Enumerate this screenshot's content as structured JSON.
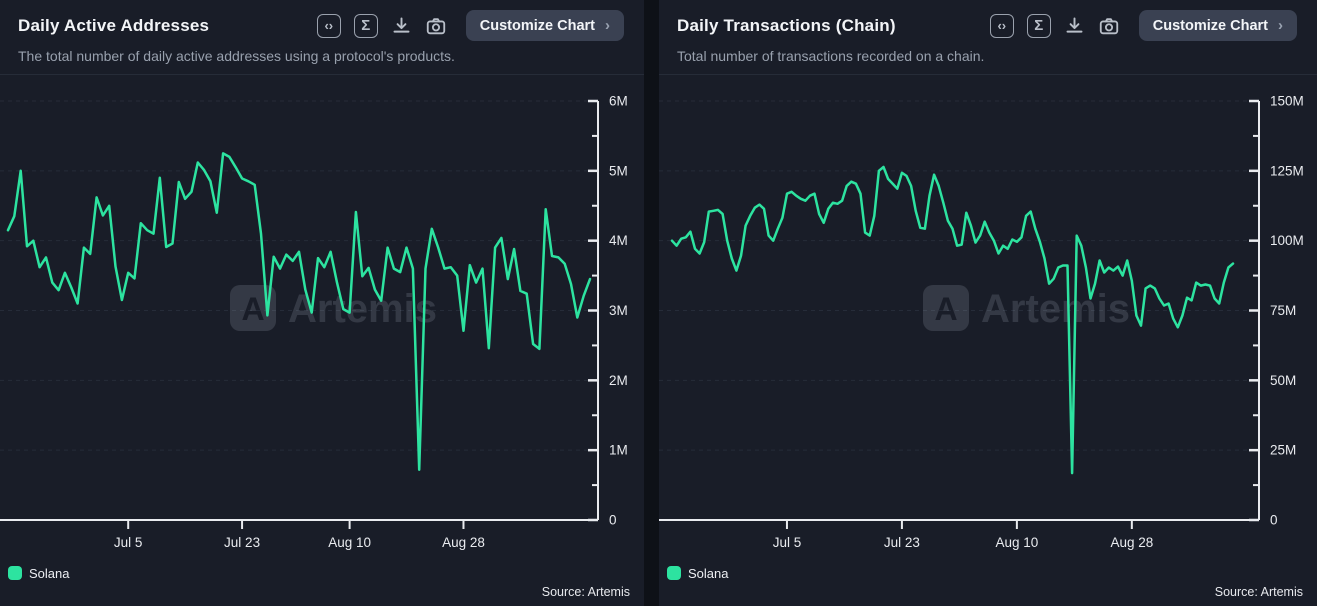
{
  "brand": {
    "watermark_logo_letter": "A",
    "watermark_text": "Artemis",
    "accent": "#2de3a0"
  },
  "panels": [
    {
      "title": "Daily Active Addresses",
      "subtitle": "The total number of daily active addresses using a protocol's products.",
      "customize_label": "Customize Chart",
      "customize_chevron": "›",
      "icons": [
        "embed-code",
        "sigma-summary",
        "download",
        "camera-snapshot"
      ],
      "legend": [
        {
          "label": "Solana",
          "color": "#2de3a0"
        }
      ],
      "source": "Source: Artemis"
    },
    {
      "title": "Daily Transactions (Chain)",
      "subtitle": "Total number of transactions recorded on a chain.",
      "customize_label": "Customize Chart",
      "customize_chevron": "›",
      "icons": [
        "embed-code",
        "sigma-summary",
        "download",
        "camera-snapshot"
      ],
      "legend": [
        {
          "label": "Solana",
          "color": "#2de3a0"
        }
      ],
      "source": "Source: Artemis"
    }
  ],
  "chart_data": [
    {
      "type": "line",
      "title": "Daily Active Addresses",
      "ylabel": "",
      "xlabel": "",
      "unit": "millions of addresses",
      "grid": "horizontal-dashed",
      "legend_position": "bottom-left",
      "y_axis_side": "right",
      "ylim": [
        0,
        6
      ],
      "y_tick_values": [
        0,
        1,
        2,
        3,
        4,
        5,
        6
      ],
      "y_tick_labels": [
        "0",
        "1M",
        "2M",
        "3M",
        "4M",
        "5M",
        "6M"
      ],
      "x_tick_labels": [
        "Jul 5",
        "Jul 23",
        "Aug 10",
        "Aug 28"
      ],
      "x_tick_indices": [
        19,
        37,
        54,
        72
      ],
      "series": [
        {
          "name": "Solana",
          "color": "#2de3a0",
          "values": [
            4.15,
            4.35,
            5.0,
            3.92,
            4.0,
            3.62,
            3.76,
            3.4,
            3.29,
            3.54,
            3.33,
            3.1,
            3.9,
            3.81,
            4.62,
            4.36,
            4.5,
            3.63,
            3.15,
            3.54,
            3.46,
            4.25,
            4.15,
            4.1,
            4.9,
            3.91,
            3.96,
            4.84,
            4.6,
            4.7,
            5.12,
            5.01,
            4.85,
            4.4,
            5.25,
            5.2,
            5.05,
            4.89,
            4.85,
            4.8,
            4.1,
            2.93,
            3.77,
            3.6,
            3.8,
            3.71,
            3.84,
            3.3,
            2.97,
            3.75,
            3.62,
            3.84,
            3.4,
            3.02,
            2.97,
            4.41,
            3.49,
            3.61,
            3.3,
            3.14,
            3.9,
            3.6,
            3.55,
            3.9,
            3.6,
            0.72,
            3.6,
            4.17,
            3.9,
            3.6,
            3.62,
            3.5,
            2.71,
            3.65,
            3.4,
            3.6,
            2.46,
            3.9,
            4.04,
            3.45,
            3.88,
            3.28,
            3.24,
            2.52,
            2.45,
            4.45,
            3.78,
            3.76,
            3.67,
            3.38,
            2.9,
            3.21,
            3.45
          ]
        }
      ]
    },
    {
      "type": "line",
      "title": "Daily Transactions (Chain)",
      "ylabel": "",
      "xlabel": "",
      "unit": "millions of transactions",
      "grid": "horizontal-dashed",
      "legend_position": "bottom-left",
      "y_axis_side": "right",
      "ylim": [
        0,
        150
      ],
      "y_tick_values": [
        0,
        25,
        50,
        75,
        100,
        125,
        150
      ],
      "y_tick_labels": [
        "0",
        "25M",
        "50M",
        "75M",
        "100M",
        "125M",
        "150M"
      ],
      "x_tick_labels": [
        "Jul 5",
        "Jul 23",
        "Aug 10",
        "Aug 28"
      ],
      "x_tick_indices": [
        25,
        50,
        75,
        100
      ],
      "series": [
        {
          "name": "Solana",
          "color": "#2de3a0",
          "values": [
            100.0,
            98.2,
            100.7,
            101.2,
            103.2,
            97.1,
            95.4,
            99.5,
            110.4,
            110.7,
            111.0,
            109.6,
            100.0,
            93.6,
            89.3,
            94.6,
            105.4,
            108.9,
            111.8,
            112.9,
            111.4,
            101.8,
            100.0,
            104.3,
            108.2,
            116.8,
            117.5,
            116.1,
            115.0,
            114.3,
            116.1,
            116.8,
            109.6,
            106.4,
            111.4,
            113.6,
            113.2,
            114.3,
            119.6,
            121.1,
            120.4,
            116.8,
            102.9,
            101.8,
            108.9,
            125.0,
            126.4,
            122.1,
            120.4,
            118.6,
            124.3,
            123.2,
            119.6,
            110.7,
            104.6,
            104.3,
            116.1,
            123.6,
            119.6,
            113.6,
            107.1,
            104.3,
            98.2,
            98.6,
            110.0,
            105.4,
            99.3,
            101.8,
            106.8,
            102.9,
            100.0,
            95.4,
            98.2,
            97.1,
            100.4,
            99.6,
            101.2,
            108.9,
            110.4,
            104.3,
            99.6,
            93.6,
            84.6,
            86.4,
            90.4,
            91.1,
            91.1,
            16.8,
            101.8,
            98.2,
            90.4,
            79.3,
            84.6,
            92.9,
            88.6,
            90.4,
            89.3,
            90.7,
            87.5,
            92.9,
            85.7,
            73.2,
            69.6,
            82.9,
            83.9,
            82.9,
            79.3,
            76.8,
            77.5,
            72.1,
            69.0,
            73.2,
            79.6,
            78.6,
            85.0,
            83.9,
            84.3,
            83.9,
            79.3,
            77.5,
            85.0,
            90.4,
            91.8
          ]
        }
      ]
    }
  ]
}
